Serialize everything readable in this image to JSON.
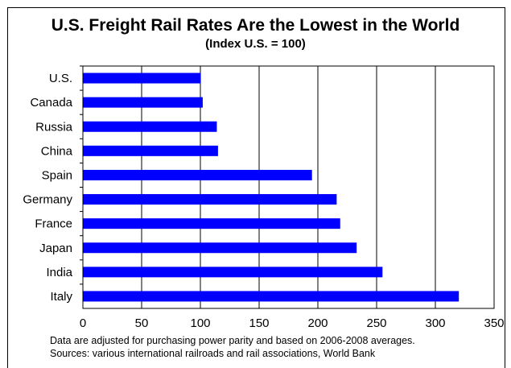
{
  "chart_data": {
    "type": "bar",
    "orientation": "horizontal",
    "title": "U.S. Freight Rail Rates Are the Lowest in the World",
    "subtitle": "(Index U.S. = 100)",
    "categories": [
      "U.S.",
      "Canada",
      "Russia",
      "China",
      "Spain",
      "Germany",
      "France",
      "Japan",
      "India",
      "Italy"
    ],
    "values": [
      100,
      102,
      114,
      115,
      195,
      216,
      219,
      233,
      255,
      320
    ],
    "xlim": [
      0,
      350
    ],
    "xticks": [
      0,
      50,
      100,
      150,
      200,
      250,
      300,
      350
    ],
    "xlabel": "",
    "ylabel": "",
    "grid": "vertical",
    "bar_color": "#0000ff",
    "footnotes": [
      "Data are adjusted for purchasing power parity and based on 2006-2008 averages.",
      "Sources:  various international railroads and rail associations, World Bank"
    ]
  }
}
